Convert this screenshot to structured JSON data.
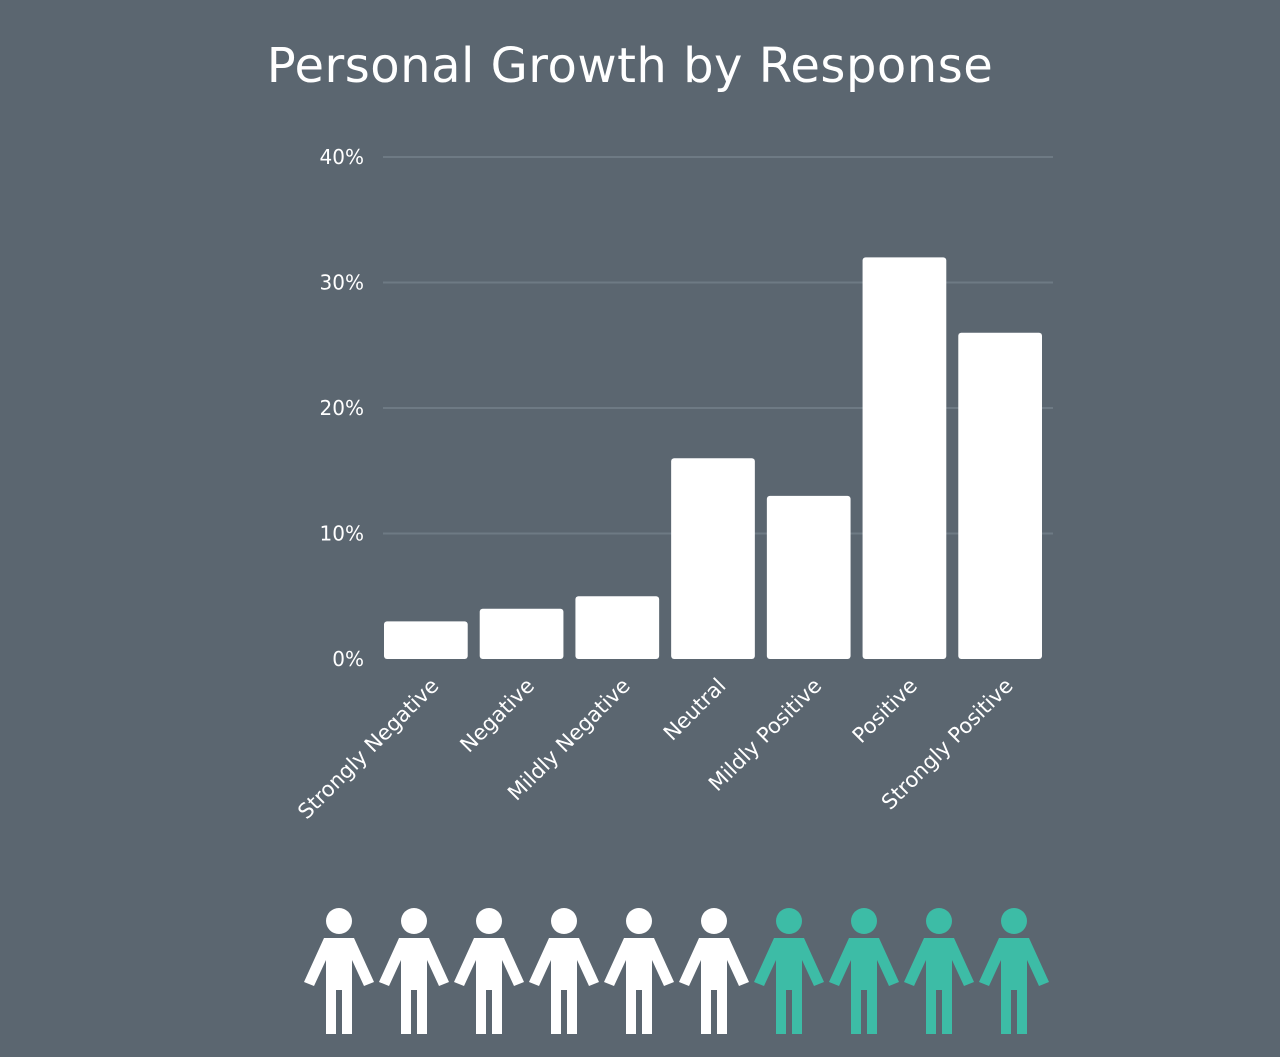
{
  "chart_data": {
    "type": "bar",
    "title": "Personal Growth by Response",
    "categories": [
      "Strongly Negative",
      "Negative",
      "Mildly Negative",
      "Neutral",
      "Mildly Positive",
      "Positive",
      "Strongly Positive"
    ],
    "values": [
      3,
      4,
      5,
      16,
      13,
      32,
      26
    ],
    "value_unit": "percent",
    "ylim": [
      0,
      40
    ],
    "yticks": [
      "0%",
      "10%",
      "20%",
      "30%",
      "40%"
    ],
    "ytick_values": [
      0,
      10,
      20,
      30,
      40
    ],
    "xlabel": "",
    "ylabel": "",
    "grid": true,
    "bar_color": "#ffffff",
    "gridline_color": "#6e7a84",
    "background_color": "#5b6670"
  },
  "people_icons": {
    "icon": "person-icon",
    "total": 10,
    "highlighted": 4,
    "base_color": "#ffffff",
    "highlight_color": "#3dbca6"
  }
}
